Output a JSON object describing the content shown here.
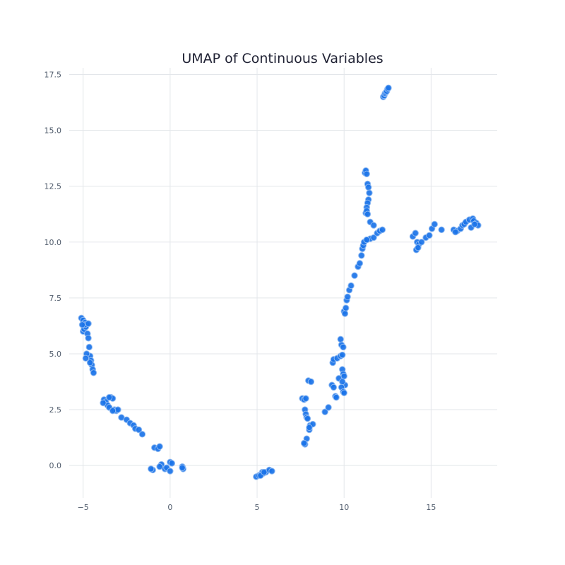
{
  "chart_data": {
    "type": "scatter",
    "title": "UMAP of Continuous Variables",
    "xlabel": "",
    "ylabel": "",
    "xlim": [
      -5.8,
      18.8
    ],
    "ylim": [
      -1.45,
      17.8
    ],
    "xticks": [
      -5,
      0,
      5,
      10,
      15
    ],
    "yticks": [
      0.0,
      2.5,
      5.0,
      7.5,
      10.0,
      12.5,
      15.0,
      17.5
    ],
    "xtick_labels": [
      "−5",
      "0",
      "5",
      "10",
      "15"
    ],
    "ytick_labels": [
      "0.0",
      "2.5",
      "5.0",
      "7.5",
      "10.0",
      "12.5",
      "15.0",
      "17.5"
    ],
    "grid": true,
    "legend": false,
    "point_color": "#1a73e8",
    "point_edge_color": "#8fbaf2",
    "series": [
      {
        "x": [
          -5.1,
          -5.0,
          -4.9,
          -4.8,
          -5.0,
          -4.95,
          -4.85,
          -4.75,
          -4.7,
          -4.65,
          -4.6,
          -4.55,
          -4.5,
          -4.45,
          -4.4,
          -4.8,
          -4.85,
          -4.9,
          -5.05,
          -4.7,
          -4.6,
          -3.8,
          -3.7,
          -3.6,
          -3.5,
          -3.4,
          -3.3,
          -3.2,
          -3.1,
          -3.0,
          -3.3,
          -3.5,
          -3.85,
          -2.8,
          -2.5,
          -2.3,
          -2.1,
          -2.0,
          -1.8,
          -1.6,
          -0.9,
          -0.7,
          -0.6,
          -0.5,
          -1.0,
          -1.1,
          -0.6,
          -0.3,
          -0.2,
          0.0,
          0.1,
          0.0,
          0.7,
          0.75,
          0.7,
          4.95,
          5.1,
          5.2,
          5.3,
          5.35,
          5.5,
          5.7,
          5.85,
          5.2,
          5.4,
          7.6,
          7.7,
          7.75,
          7.8,
          7.85,
          7.9,
          8.0,
          8.05,
          7.95,
          8.2,
          8.0,
          7.85,
          7.75,
          7.7,
          7.8,
          8.1,
          8.9,
          9.1,
          9.3,
          9.4,
          9.5,
          9.55,
          9.35,
          9.4,
          9.6,
          9.7,
          9.8,
          9.85,
          9.9,
          9.95,
          10.0,
          10.05,
          9.9,
          9.85,
          9.95,
          10.0,
          9.8,
          9.9,
          9.95,
          10.0,
          10.05,
          10.1,
          10.15,
          10.2,
          10.3,
          10.4,
          10.6,
          10.8,
          10.9,
          11.0,
          11.05,
          11.1,
          11.15,
          11.3,
          11.5,
          11.7,
          11.9,
          12.05,
          12.2,
          11.2,
          11.25,
          11.3,
          11.35,
          11.4,
          11.45,
          11.4,
          11.35,
          11.3,
          11.25,
          11.3,
          11.35,
          11.3,
          11.5,
          11.7,
          12.25,
          12.3,
          12.35,
          12.4,
          12.45,
          12.5,
          12.55,
          13.95,
          14.1,
          14.2,
          14.3,
          14.45,
          14.7,
          14.9,
          15.05,
          15.2,
          15.6,
          14.15,
          14.25,
          16.3,
          16.5,
          16.7,
          16.8,
          16.9,
          17.0,
          17.2,
          17.4,
          17.45,
          17.6,
          17.7,
          16.4,
          17.3,
          17.5
        ],
        "y": [
          6.6,
          6.5,
          6.4,
          6.3,
          6.0,
          6.1,
          6.2,
          5.9,
          5.7,
          5.3,
          4.9,
          4.7,
          4.5,
          4.3,
          4.15,
          5.0,
          4.8,
          6.3,
          6.3,
          6.35,
          4.6,
          2.95,
          2.85,
          2.7,
          2.6,
          3.05,
          3.0,
          2.5,
          2.45,
          2.5,
          2.45,
          3.05,
          2.8,
          2.15,
          2.05,
          1.9,
          1.8,
          1.65,
          1.6,
          1.4,
          0.8,
          0.75,
          0.85,
          0.05,
          -0.2,
          -0.15,
          -0.05,
          -0.15,
          -0.1,
          0.15,
          0.1,
          -0.25,
          -0.05,
          -0.15,
          -0.1,
          -0.5,
          -0.45,
          -0.4,
          -0.3,
          -0.35,
          -0.3,
          -0.2,
          -0.25,
          -0.45,
          -0.3,
          3.0,
          2.95,
          2.5,
          2.3,
          2.15,
          2.1,
          1.6,
          1.8,
          3.8,
          1.85,
          1.7,
          1.2,
          0.95,
          1.0,
          3.0,
          3.75,
          2.4,
          2.6,
          3.6,
          3.5,
          3.1,
          3.05,
          4.6,
          4.75,
          4.8,
          3.9,
          5.65,
          5.4,
          4.3,
          4.1,
          4.0,
          3.6,
          3.75,
          3.5,
          3.3,
          3.25,
          4.9,
          4.95,
          5.3,
          6.9,
          6.8,
          7.05,
          7.4,
          7.55,
          7.85,
          8.05,
          8.5,
          8.9,
          9.05,
          9.4,
          9.7,
          9.85,
          10.0,
          10.1,
          10.15,
          10.2,
          10.4,
          10.5,
          10.55,
          13.1,
          13.2,
          13.05,
          12.6,
          12.45,
          12.2,
          11.9,
          11.75,
          11.55,
          11.3,
          11.4,
          11.25,
          10.1,
          10.9,
          10.75,
          16.5,
          16.55,
          16.65,
          16.7,
          16.75,
          16.85,
          16.9,
          10.25,
          10.4,
          10.0,
          9.9,
          10.0,
          10.2,
          10.3,
          10.6,
          10.8,
          10.55,
          9.65,
          9.75,
          10.55,
          10.5,
          10.6,
          10.75,
          10.8,
          10.9,
          11.0,
          11.05,
          10.95,
          10.85,
          10.75,
          10.45,
          10.65,
          10.8
        ]
      }
    ]
  }
}
